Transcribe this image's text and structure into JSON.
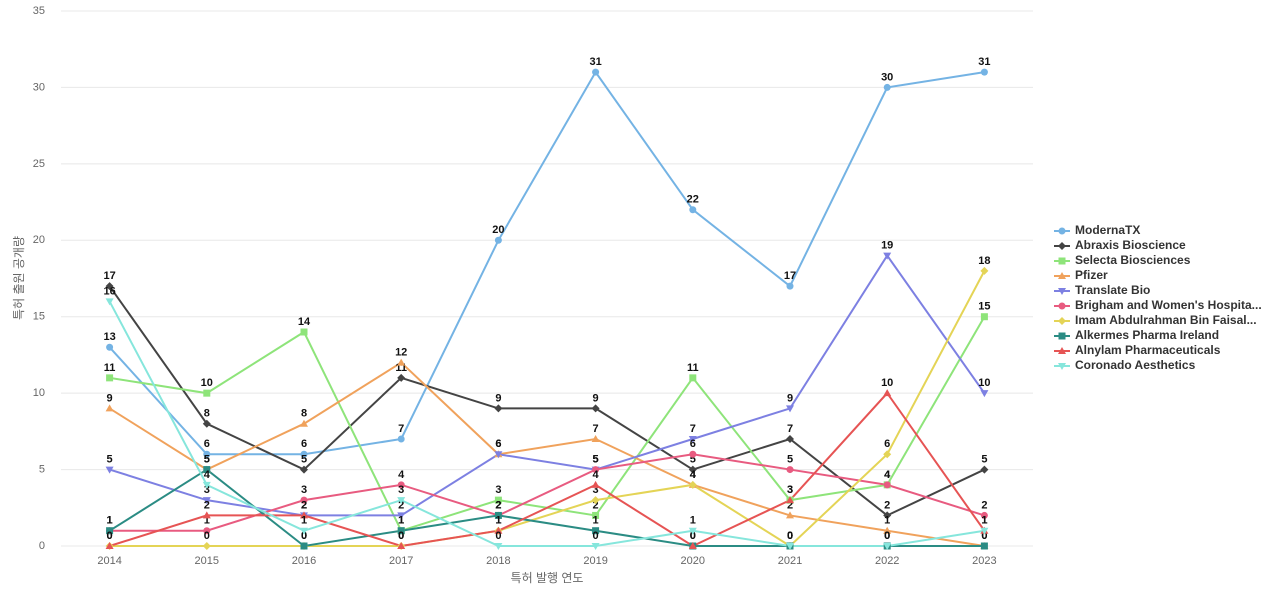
{
  "chart_data": {
    "type": "line",
    "x_label": "특허 발행 연도",
    "y_label": "특허 출원 공개량",
    "categories": [
      "2014",
      "2015",
      "2016",
      "2017",
      "2018",
      "2019",
      "2020",
      "2021",
      "2022",
      "2023"
    ],
    "ylim": [
      0,
      35
    ],
    "yticks": [
      0,
      5,
      10,
      15,
      20,
      25,
      30,
      35
    ],
    "grid": true,
    "legend": "right",
    "series": [
      {
        "name": "ModernaTX",
        "color": "#74b3e4",
        "marker": "circle",
        "values": [
          13,
          6,
          6,
          7,
          20,
          31,
          22,
          17,
          30,
          31
        ]
      },
      {
        "name": "Abraxis Bioscience",
        "color": "#444444",
        "marker": "diamond",
        "values": [
          17,
          8,
          5,
          11,
          9,
          9,
          5,
          7,
          2,
          5
        ]
      },
      {
        "name": "Selecta Biosciences",
        "color": "#8ee47a",
        "marker": "square",
        "values": [
          11,
          10,
          14,
          1,
          3,
          2,
          11,
          3,
          4,
          15
        ]
      },
      {
        "name": "Pfizer",
        "color": "#f0a25c",
        "marker": "triangle",
        "values": [
          9,
          5,
          8,
          12,
          6,
          7,
          4,
          2,
          1,
          0
        ]
      },
      {
        "name": "Translate Bio",
        "color": "#7d80e2",
        "marker": "triangle-down",
        "values": [
          5,
          3,
          2,
          2,
          6,
          5,
          7,
          9,
          19,
          10
        ]
      },
      {
        "name": "Brigham and Women's Hospita...",
        "color": "#e85b80",
        "marker": "circle",
        "values": [
          1,
          1,
          3,
          4,
          2,
          5,
          6,
          5,
          4,
          2
        ]
      },
      {
        "name": "Imam Abdulrahman Bin Faisal...",
        "color": "#e4d456",
        "marker": "diamond",
        "values": [
          0,
          0,
          0,
          0,
          1,
          3,
          4,
          0,
          6,
          18
        ]
      },
      {
        "name": "Alkermes Pharma Ireland",
        "color": "#2b8c84",
        "marker": "square",
        "values": [
          1,
          5,
          0,
          1,
          2,
          1,
          0,
          0,
          0,
          0
        ]
      },
      {
        "name": "Alnylam Pharmaceuticals",
        "color": "#e65454",
        "marker": "triangle",
        "values": [
          0,
          2,
          2,
          0,
          1,
          4,
          0,
          3,
          10,
          1
        ]
      },
      {
        "name": "Coronado Aesthetics",
        "color": "#86e6dc",
        "marker": "triangle-down",
        "values": [
          16,
          4,
          1,
          3,
          0,
          0,
          1,
          0,
          0,
          1
        ]
      }
    ]
  }
}
